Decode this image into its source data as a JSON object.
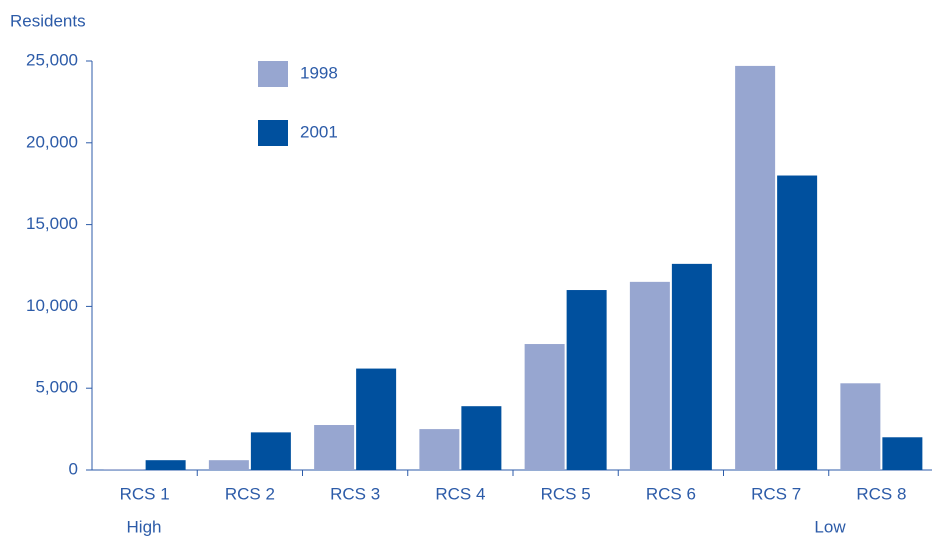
{
  "chart_data": {
    "type": "bar",
    "y_axis_label": "Residents",
    "categories": [
      "RCS 1",
      "RCS 2",
      "RCS 3",
      "RCS 4",
      "RCS 5",
      "RCS 6",
      "RCS 7",
      "RCS 8"
    ],
    "series": [
      {
        "name": "1998",
        "color": "#97a6d0",
        "values": [
          50,
          600,
          2750,
          2500,
          7700,
          11500,
          24700,
          5300
        ]
      },
      {
        "name": "2001",
        "color": "#00509e",
        "values": [
          600,
          2300,
          6200,
          3900,
          11000,
          12600,
          18000,
          2000
        ]
      }
    ],
    "ylim": [
      0,
      25000
    ],
    "yticks": [
      0,
      {
        "value": 5000,
        "label": "5,000"
      },
      {
        "value": 10000,
        "label": "10,000"
      },
      {
        "value": 15000,
        "label": "15,000"
      },
      {
        "value": 20000,
        "label": "20,000"
      },
      {
        "value": 25000,
        "label": "25,000"
      }
    ],
    "annotations": [
      "High",
      "Low"
    ],
    "grid": false
  }
}
